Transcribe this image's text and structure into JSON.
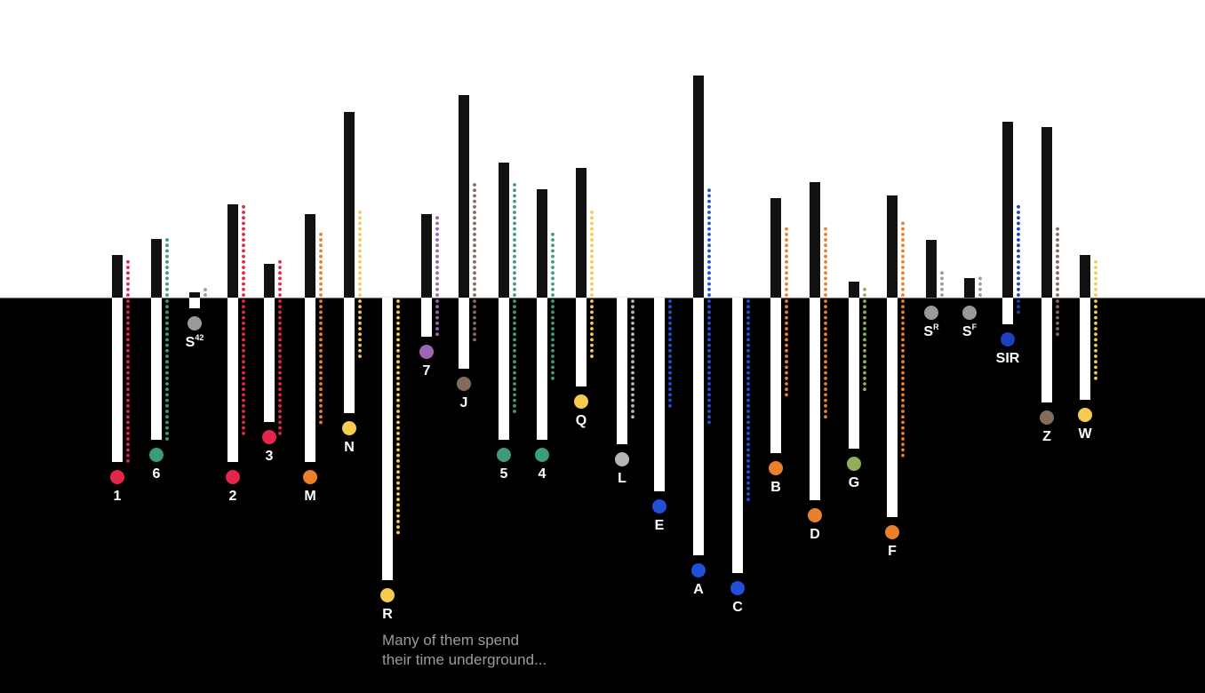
{
  "chart_data": {
    "type": "bar",
    "colors": {
      "red": "#e3264a",
      "teal": "#3f9a7d",
      "gray": "#9a9a9a",
      "orange": "#ea7f2c",
      "yellow": "#f5cc4f",
      "purple": "#9a67b0",
      "brown": "#866a5c",
      "blue": "#2250d8",
      "lightgray": "#b9b5b3",
      "olive": "#8fae5a",
      "navy": "#1f3fbf"
    },
    "lines": [
      {
        "label": "1",
        "base": "",
        "sup": "",
        "color": "red",
        "above": 48,
        "below": 185,
        "dots_above": 44,
        "dots_below": 185
      },
      {
        "label": "6",
        "base": "",
        "sup": "",
        "color": "teal",
        "above": 66,
        "below": 160,
        "dots_above": 66,
        "dots_below": 160
      },
      {
        "label": "S42",
        "base": "S",
        "sup": "42",
        "color": "gray",
        "above": 0,
        "below": 12,
        "dots_above": 0,
        "dots_below": 0
      },
      {
        "label": "2",
        "base": "",
        "sup": "",
        "color": "red",
        "above": 105,
        "below": 185,
        "dots_above": 108,
        "dots_below": 158
      },
      {
        "label": "3",
        "base": "",
        "sup": "",
        "color": "red",
        "above": 38,
        "below": 140,
        "dots_above": 42,
        "dots_below": 158
      },
      {
        "label": "M",
        "base": "",
        "sup": "",
        "color": "orange",
        "above": 94,
        "below": 185,
        "dots_above": 72,
        "dots_below": 142
      },
      {
        "label": "N",
        "base": "",
        "sup": "",
        "color": "yellow",
        "above": 209,
        "below": 130,
        "dots_above": 101,
        "dots_below": 66
      },
      {
        "label": "R",
        "base": "",
        "sup": "",
        "color": "yellow",
        "above": 0,
        "below": 318,
        "dots_above": 0,
        "dots_below": 264
      },
      {
        "label": "7",
        "base": "",
        "sup": "",
        "color": "purple",
        "above": 94,
        "below": 44,
        "dots_above": 92,
        "dots_below": 44
      },
      {
        "label": "J",
        "base": "",
        "sup": "",
        "color": "brown",
        "above": 228,
        "below": 80,
        "dots_above": 130,
        "dots_below": 48
      },
      {
        "label": "5",
        "base": "",
        "sup": "",
        "color": "teal",
        "above": 152,
        "below": 160,
        "dots_above": 130,
        "dots_below": 132
      },
      {
        "label": "4",
        "base": "",
        "sup": "",
        "color": "teal",
        "above": 122,
        "below": 160,
        "dots_above": 72,
        "dots_below": 92
      },
      {
        "label": "Q",
        "base": "",
        "sup": "",
        "color": "yellow",
        "above": 146,
        "below": 100,
        "dots_above": 101,
        "dots_below": 68
      },
      {
        "label": "L",
        "base": "",
        "sup": "",
        "color": "lightgray",
        "above": 0,
        "below": 165,
        "dots_above": 0,
        "dots_below": 138
      },
      {
        "label": "E",
        "base": "",
        "sup": "",
        "color": "blue",
        "above": 0,
        "below": 218,
        "dots_above": 0,
        "dots_below": 126
      },
      {
        "label": "A",
        "base": "",
        "sup": "",
        "color": "blue",
        "above": 250,
        "below": 290,
        "dots_above": 124,
        "dots_below": 142
      },
      {
        "label": "C",
        "base": "",
        "sup": "",
        "color": "blue",
        "above": 0,
        "below": 310,
        "dots_above": 0,
        "dots_below": 232
      },
      {
        "label": "B",
        "base": "",
        "sup": "",
        "color": "orange",
        "above": 112,
        "below": 175,
        "dots_above": 78,
        "dots_below": 112
      },
      {
        "label": "D",
        "base": "",
        "sup": "",
        "color": "orange",
        "above": 130,
        "below": 228,
        "dots_above": 78,
        "dots_below": 134
      },
      {
        "label": "G",
        "base": "",
        "sup": "",
        "color": "olive",
        "above": 18,
        "below": 170,
        "dots_above": 12,
        "dots_below": 108
      },
      {
        "label": "F",
        "base": "",
        "sup": "",
        "color": "orange",
        "above": 115,
        "below": 247,
        "dots_above": 84,
        "dots_below": 180
      },
      {
        "label": "SR",
        "base": "S",
        "sup": "R",
        "color": "gray",
        "above": 65,
        "below": 0,
        "dots_above": 30,
        "dots_below": 0
      },
      {
        "label": "SF",
        "base": "S",
        "sup": "F",
        "color": "gray",
        "above": 22,
        "below": 0,
        "dots_above": 24,
        "dots_below": 0
      },
      {
        "label": "SIR",
        "base": "",
        "sup": "",
        "color": "navy",
        "above": 198,
        "below": 30,
        "dots_above": 106,
        "dots_below": 16
      },
      {
        "label": "Z",
        "base": "",
        "sup": "",
        "color": "brown",
        "above": 192,
        "below": 118,
        "dots_above": 78,
        "dots_below": 46
      },
      {
        "label": "W",
        "base": "",
        "sup": "",
        "color": "yellow",
        "above": 48,
        "below": 115,
        "dots_above": 42,
        "dots_below": 92
      }
    ]
  },
  "caption": {
    "line1": "Many of them spend",
    "line2": "their time underground..."
  }
}
